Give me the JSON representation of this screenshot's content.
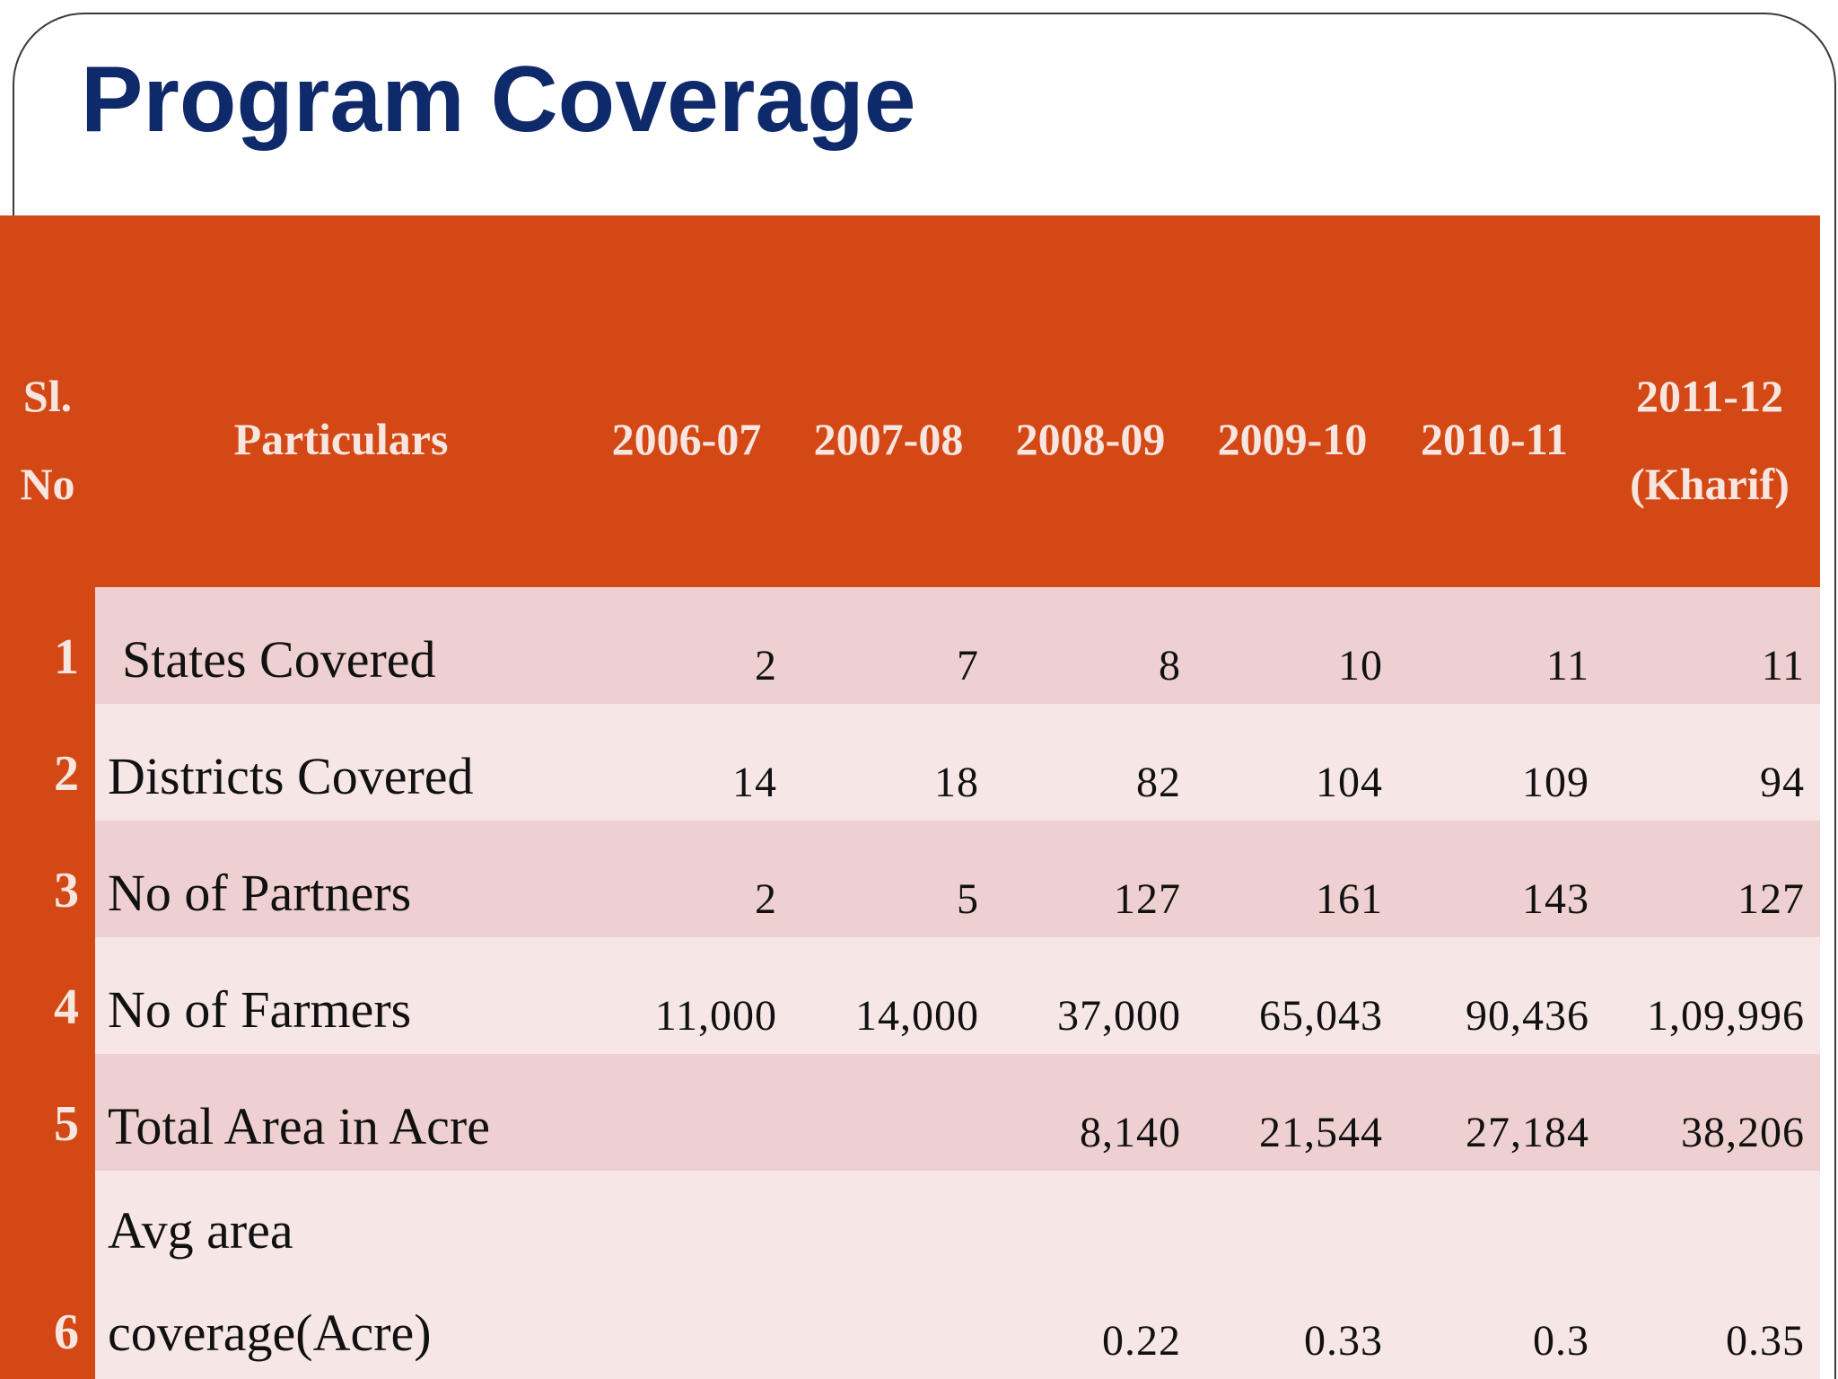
{
  "slide": {
    "title": "Program Coverage"
  },
  "table": {
    "headers": {
      "sl_line1": "Sl.",
      "sl_line2": "No",
      "particulars": "Particulars",
      "years": [
        "2006-07",
        "2007-08",
        "2008-09",
        "2009-10",
        "2010-11"
      ],
      "last_year_line1": "2011-12",
      "last_year_line2": "(Kharif)"
    },
    "rows": [
      {
        "sl": "1",
        "particular": "States Covered",
        "values": [
          "2",
          "7",
          "8",
          "10",
          "11",
          "11"
        ]
      },
      {
        "sl": "2",
        "particular": "Districts Covered",
        "values": [
          "14",
          "18",
          "82",
          "104",
          "109",
          "94"
        ]
      },
      {
        "sl": "3",
        "particular": "No of Partners",
        "values": [
          "2",
          "5",
          "127",
          "161",
          "143",
          "127"
        ]
      },
      {
        "sl": "4",
        "particular": "No of Farmers",
        "values": [
          "11,000",
          "14,000",
          "37,000",
          "65,043",
          "90,436",
          "1,09,996"
        ]
      },
      {
        "sl": "5",
        "particular": "Total Area in Acre",
        "values": [
          "",
          "",
          "8,140",
          "21,544",
          "27,184",
          "38,206"
        ]
      },
      {
        "sl": "6",
        "particular_line1": "Avg area",
        "particular_line2": "coverage(Acre)",
        "values": [
          "",
          "",
          "0.22",
          "0.33",
          "0.3",
          "0.35"
        ]
      }
    ]
  },
  "colors": {
    "title": "#0f2a6b",
    "header_bg": "#d44816",
    "row_odd": "#edd0cf",
    "row_even": "#f6e7e6"
  }
}
